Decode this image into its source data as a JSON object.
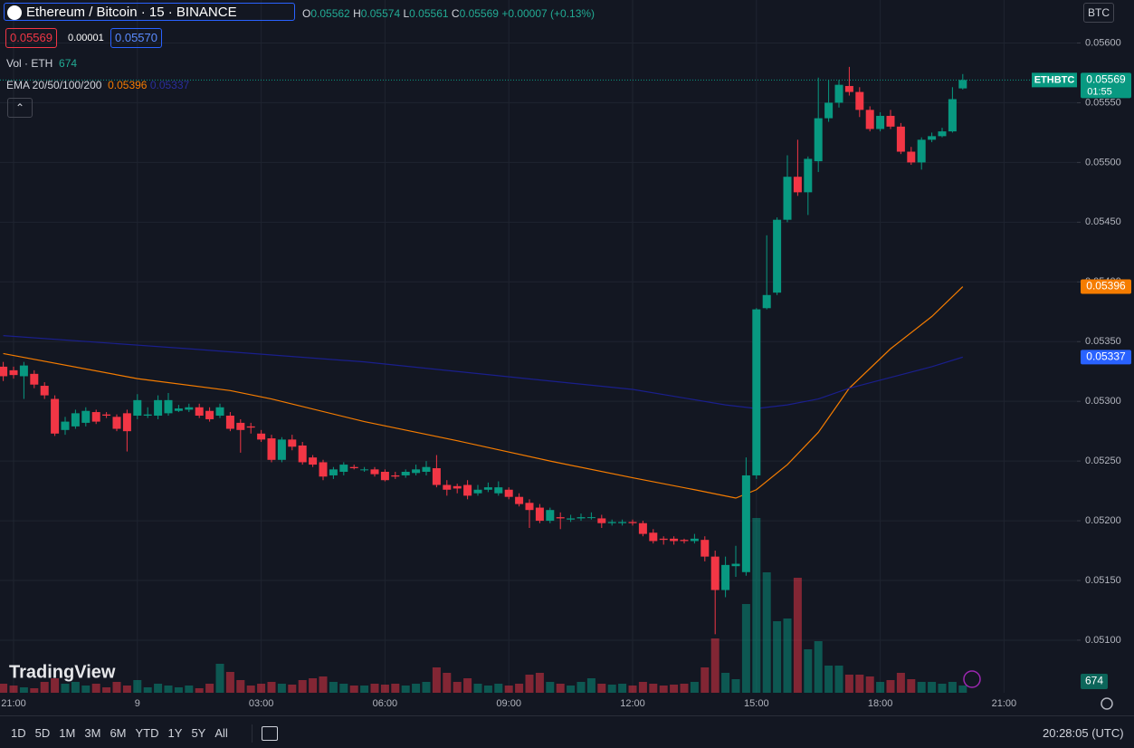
{
  "header": {
    "symbol": "Ethereum / Bitcoin · 15 · BINANCE",
    "ohlc": [
      [
        "O",
        "0.05562"
      ],
      [
        "H",
        "0.05574"
      ],
      [
        "L",
        "0.05561"
      ],
      [
        "C",
        "0.05569"
      ]
    ],
    "change": "+0.00007 (+0.13%)",
    "bid": "0.05569",
    "spread": "0.00001",
    "ask": "0.05570",
    "currency": "BTC"
  },
  "indicators": {
    "volume_label": "Vol · ETH",
    "volume_value": "674",
    "ema_label": "EMA 20/50/100/200",
    "ema_values": [
      "0.05396",
      "0.05337"
    ]
  },
  "chart_data": {
    "type": "candlestick",
    "categories": [
      null,
      "21:00",
      null,
      null,
      null,
      null,
      null,
      null,
      null,
      null,
      null,
      null,
      null,
      "9",
      null,
      null,
      null,
      null,
      null,
      null,
      null,
      null,
      null,
      null,
      null,
      "03:00",
      null,
      null,
      null,
      null,
      null,
      null,
      null,
      null,
      null,
      null,
      null,
      "06:00",
      null,
      null,
      null,
      null,
      null,
      null,
      null,
      null,
      null,
      null,
      null,
      "09:00",
      null,
      null,
      null,
      null,
      null,
      null,
      null,
      null,
      null,
      null,
      null,
      "12:00",
      null,
      null,
      null,
      null,
      null,
      null,
      null,
      null,
      null,
      null,
      null,
      "15:00",
      null,
      null,
      null,
      null,
      null,
      null,
      null,
      null,
      null,
      null,
      null,
      "18:00",
      null,
      null,
      null,
      null,
      null,
      null,
      null,
      null,
      null,
      null,
      null,
      "21:00"
    ],
    "open": [
      0.05329,
      0.05326,
      0.05321,
      0.05323,
      0.05313,
      0.05302,
      0.05276,
      0.05279,
      0.05282,
      0.05291,
      0.05289,
      0.05287,
      0.0529,
      0.05288,
      0.05288,
      0.05288,
      0.0529,
      0.05292,
      0.05293,
      0.05295,
      0.05292,
      0.05288,
      0.05288,
      0.05282,
      0.05279,
      0.05273,
      0.05269,
      0.05251,
      0.05268,
      0.05263,
      0.05253,
      0.05249,
      0.05238,
      0.05241,
      0.05245,
      0.05243,
      0.05243,
      0.05241,
      0.05238,
      0.05238,
      0.0524,
      0.05241,
      0.05244,
      0.0523,
      0.05229,
      0.0523,
      0.05223,
      0.05226,
      0.05223,
      0.05226,
      0.0522,
      0.05215,
      0.05211,
      0.052,
      0.05203,
      0.05201,
      0.05202,
      0.05203,
      0.05202,
      0.05198,
      0.05198,
      0.05199,
      0.05198,
      0.0519,
      0.05185,
      0.05185,
      0.05184,
      0.05183,
      0.05184,
      0.0517,
      0.05142,
      0.05162,
      0.05157,
      0.05238,
      0.05378,
      0.05391,
      0.05452,
      0.05488,
      0.05475,
      0.05501,
      0.05537,
      0.0555,
      0.05564,
      0.05559,
      0.05544,
      0.05528,
      0.05539,
      0.0553,
      0.05509,
      0.055,
      0.05519,
      0.05522,
      0.05526,
      0.05562,
      null,
      null,
      null,
      null
    ],
    "high": [
      0.05333,
      0.05329,
      0.05333,
      0.05326,
      0.05316,
      0.05305,
      0.05287,
      0.05293,
      0.05295,
      0.05293,
      0.05291,
      0.05289,
      0.05293,
      0.05306,
      0.05295,
      0.05305,
      0.05307,
      0.05297,
      0.05298,
      0.05298,
      0.05295,
      0.05298,
      0.05291,
      0.05285,
      0.05282,
      0.05276,
      0.05272,
      0.0527,
      0.05272,
      0.05266,
      0.05255,
      0.05251,
      0.05245,
      0.05249,
      0.05247,
      0.05245,
      0.05245,
      0.05243,
      0.05241,
      0.05243,
      0.05247,
      0.0525,
      0.05255,
      0.05234,
      0.05231,
      0.05234,
      0.0523,
      0.05232,
      0.05233,
      0.05228,
      0.05223,
      0.05218,
      0.05214,
      0.05211,
      0.05207,
      0.05205,
      0.05206,
      0.05207,
      0.05205,
      0.05201,
      0.05201,
      0.05201,
      0.052,
      0.05193,
      0.05187,
      0.05187,
      0.05185,
      0.05189,
      0.05187,
      0.05175,
      0.0517,
      0.05179,
      0.05253,
      0.05378,
      0.05439,
      0.05454,
      0.05506,
      0.05519,
      0.05505,
      0.05571,
      0.05569,
      0.05569,
      0.0558,
      0.05563,
      0.05547,
      0.05542,
      0.05544,
      0.05533,
      0.05513,
      0.05521,
      0.05525,
      0.05529,
      0.05563,
      0.05574,
      null,
      null,
      null,
      null
    ],
    "low": [
      0.05317,
      0.05319,
      0.05302,
      0.05311,
      0.05302,
      0.05271,
      0.05272,
      0.05277,
      0.05279,
      0.05281,
      0.05286,
      0.05275,
      0.05258,
      0.05285,
      0.05286,
      0.05285,
      0.05288,
      0.05291,
      0.05291,
      0.05286,
      0.05283,
      0.05286,
      0.05275,
      0.05257,
      0.05273,
      0.05266,
      0.05249,
      0.05249,
      0.05259,
      0.05247,
      0.05245,
      0.05234,
      0.05235,
      0.05238,
      0.05243,
      0.05241,
      0.05237,
      0.05233,
      0.05235,
      0.05236,
      0.05238,
      0.05238,
      0.05228,
      0.05221,
      0.05223,
      0.05218,
      0.05221,
      0.05224,
      0.05221,
      0.05218,
      0.05212,
      0.05194,
      0.05198,
      0.05198,
      0.05193,
      0.05199,
      0.052,
      0.05201,
      0.05194,
      0.05196,
      0.05196,
      0.05196,
      0.05187,
      0.05181,
      0.0518,
      0.0518,
      0.05181,
      0.05181,
      0.05166,
      0.05105,
      0.05136,
      0.05153,
      0.05154,
      0.05235,
      0.05377,
      0.05389,
      0.0545,
      0.05472,
      0.05456,
      0.05492,
      0.05534,
      0.05546,
      0.05556,
      0.05538,
      0.05526,
      0.05526,
      0.05528,
      0.05507,
      0.05498,
      0.05494,
      0.05517,
      0.05521,
      0.05525,
      0.05561,
      null,
      null,
      null,
      null
    ],
    "close": [
      0.05321,
      0.05322,
      0.0533,
      0.05314,
      0.05305,
      0.05273,
      0.05283,
      0.0529,
      0.05292,
      0.05283,
      0.05288,
      0.05277,
      0.05275,
      0.05301,
      0.05289,
      0.05301,
      0.05301,
      0.05294,
      0.05295,
      0.05288,
      0.05285,
      0.05295,
      0.05277,
      0.05276,
      0.05278,
      0.05268,
      0.05251,
      0.05268,
      0.05262,
      0.05249,
      0.05247,
      0.05237,
      0.05243,
      0.05247,
      0.05244,
      0.05243,
      0.05239,
      0.05234,
      0.05237,
      0.05241,
      0.05243,
      0.05245,
      0.0523,
      0.05226,
      0.05227,
      0.05221,
      0.05226,
      0.05228,
      0.05228,
      0.0522,
      0.05214,
      0.05209,
      0.052,
      0.05209,
      0.05202,
      0.05202,
      0.05203,
      0.05203,
      0.05198,
      0.05199,
      0.05199,
      0.05198,
      0.05189,
      0.05183,
      0.05184,
      0.05183,
      0.05183,
      0.05185,
      0.0517,
      0.05142,
      0.05163,
      0.05164,
      0.05238,
      0.05377,
      0.05389,
      0.05452,
      0.05488,
      0.05475,
      0.05503,
      0.05537,
      0.0555,
      0.05565,
      0.05559,
      0.05544,
      0.05528,
      0.05539,
      0.0553,
      0.05509,
      0.055,
      0.05519,
      0.05522,
      0.05526,
      0.05553,
      0.05569,
      null,
      null,
      null,
      null
    ],
    "volume": [
      840,
      672,
      504,
      420,
      1008,
      1344,
      840,
      1008,
      672,
      840,
      504,
      1008,
      672,
      1176,
      504,
      840,
      672,
      504,
      672,
      420,
      840,
      2688,
      1932,
      1176,
      672,
      840,
      1008,
      840,
      756,
      1176,
      1344,
      1512,
      1008,
      840,
      672,
      672,
      840,
      756,
      840,
      672,
      840,
      1008,
      2352,
      1848,
      1008,
      1344,
      840,
      672,
      840,
      672,
      840,
      1680,
      1848,
      1008,
      840,
      672,
      1008,
      1344,
      840,
      756,
      840,
      672,
      1008,
      840,
      672,
      756,
      840,
      1008,
      2352,
      5040,
      1848,
      1260,
      8232,
      16212,
      11172,
      6636,
      6888,
      10668,
      4032,
      4788,
      2520,
      2520,
      1680,
      1680,
      1512,
      1008,
      1176,
      1848,
      1260,
      1008,
      1008,
      840,
      1008,
      674,
      null,
      null,
      null,
      null
    ],
    "up_color": "#089981",
    "down_color": "#f23645",
    "series": [
      {
        "name": "EMA 50",
        "color": "#f57c00",
        "x": [
          0,
          13,
          22,
          26,
          35,
          44,
          53,
          61,
          67,
          71,
          73,
          76,
          79,
          82,
          86,
          90,
          93
        ],
        "values": [
          0.0534,
          0.05319,
          0.05309,
          0.05302,
          0.05283,
          0.05267,
          0.0525,
          0.05236,
          0.05226,
          0.05219,
          0.05226,
          0.05247,
          0.05274,
          0.05311,
          0.05344,
          0.05371,
          0.05396
        ]
      },
      {
        "name": "EMA 100",
        "color": "#1a1f8c",
        "x": [
          0,
          18,
          35,
          53,
          61,
          70,
          73,
          76,
          79,
          82,
          86,
          90,
          93
        ],
        "values": [
          0.05355,
          0.05344,
          0.05333,
          0.05317,
          0.0531,
          0.05297,
          0.05294,
          0.05297,
          0.05302,
          0.05311,
          0.0532,
          0.05329,
          0.05337
        ]
      }
    ],
    "ylim": [
      0.05056,
      0.05636
    ],
    "yticks": [
      {
        "value": 0.051,
        "label": "0.05100"
      },
      {
        "value": 0.0515,
        "label": "0.05150"
      },
      {
        "value": 0.052,
        "label": "0.05200"
      },
      {
        "value": 0.0525,
        "label": "0.05250"
      },
      {
        "value": 0.053,
        "label": "0.05300"
      },
      {
        "value": 0.0535,
        "label": "0.05350"
      },
      {
        "value": 0.054,
        "label": "0.05400"
      },
      {
        "value": 0.0545,
        "label": "0.05450"
      },
      {
        "value": 0.055,
        "label": "0.05500"
      },
      {
        "value": 0.0555,
        "label": "0.05550"
      },
      {
        "value": 0.056,
        "label": "0.05600"
      }
    ],
    "grid": true,
    "price_tags": [
      {
        "value": 0.05396,
        "label": "0.05396",
        "color": "#f57c00"
      },
      {
        "value": 0.05337,
        "label": "0.05337",
        "color": "#2962ff"
      }
    ],
    "last_price": {
      "value": 0.05569,
      "label": "0.05569",
      "symbol": "ETHBTC",
      "countdown": "01:55",
      "color": "#089981"
    },
    "volume_tag": {
      "value": 674,
      "label": "674"
    }
  },
  "toolbar": {
    "ranges": [
      "1D",
      "5D",
      "1M",
      "3M",
      "6M",
      "YTD",
      "1Y",
      "5Y",
      "All"
    ],
    "clock": "20:28:05 (UTC)"
  },
  "watermark": "TradingView"
}
